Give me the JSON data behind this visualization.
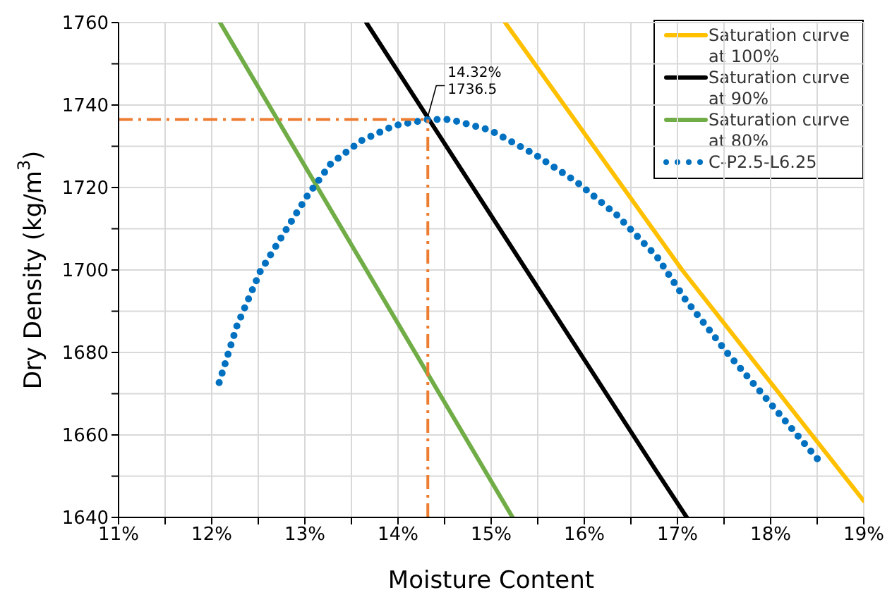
{
  "chart_data": {
    "type": "line",
    "xlabel": "Moisture Content",
    "ylabel": "Dry Density (kg/m$^{3}$)",
    "xlim": [
      11,
      19
    ],
    "ylim": [
      1640,
      1760
    ],
    "xticks": [
      {
        "value": 11,
        "label": "11%"
      },
      {
        "value": 11.5,
        "label": null
      },
      {
        "value": 12,
        "label": "12%"
      },
      {
        "value": 12.5,
        "label": null
      },
      {
        "value": 13,
        "label": "13%"
      },
      {
        "value": 13.5,
        "label": null
      },
      {
        "value": 14,
        "label": "14%"
      },
      {
        "value": 14.5,
        "label": null
      },
      {
        "value": 15,
        "label": "15%"
      },
      {
        "value": 15.5,
        "label": null
      },
      {
        "value": 16,
        "label": "16%"
      },
      {
        "value": 16.5,
        "label": null
      },
      {
        "value": 17,
        "label": "17%"
      },
      {
        "value": 17.5,
        "label": null
      },
      {
        "value": 18,
        "label": "18%"
      },
      {
        "value": 18.5,
        "label": null
      },
      {
        "value": 19,
        "label": "19%"
      }
    ],
    "yticks": [
      1640,
      {
        "value": 1650,
        "label": null
      },
      1660,
      {
        "value": 1670,
        "label": null
      },
      1680,
      {
        "value": 1690,
        "label": null
      },
      1700,
      {
        "value": 1710,
        "label": null
      },
      1720,
      {
        "value": 1730,
        "label": null
      },
      1740,
      {
        "value": 1750,
        "label": null
      },
      1760
    ],
    "grid": true,
    "legend": "top right",
    "marker": "none",
    "series": [
      {
        "name": "Saturation curve at 100%",
        "color": "#ffc000",
        "line_style": "solid",
        "x": [
          15.15,
          17.05,
          19
        ],
        "values": [
          1760,
          1700,
          1644
        ]
      },
      {
        "name": "Saturation curve at 90%",
        "color": "#000000",
        "line_style": "solid",
        "x": [
          13.66,
          16.78,
          17.1
        ],
        "values": [
          1760,
          1651,
          1640
        ]
      },
      {
        "name": "Saturation curve at 80%",
        "color": "#70ad47",
        "line_style": "solid",
        "x": [
          12.09,
          15.23
        ],
        "values": [
          1760,
          1640
        ]
      },
      {
        "name": "C-P2.5-L6.25",
        "color": "#0070c0",
        "line_style": "dotted",
        "x": [
          12.08,
          12.27,
          12.52,
          12.78,
          13.03,
          13.28,
          13.61,
          13.96,
          14.32,
          14.56,
          14.99,
          15.47,
          15.92,
          16.35,
          16.78,
          17.08,
          17.53,
          17.98,
          18.51
        ],
        "values": [
          1672.7,
          1686.4,
          1699.6,
          1709.1,
          1718.1,
          1725.8,
          1731.4,
          1735.0,
          1736.5,
          1736.5,
          1733.9,
          1728.0,
          1721.3,
          1713.3,
          1703.2,
          1693.0,
          1680.0,
          1668.1,
          1654.0
        ]
      }
    ],
    "ref_lines": [
      {
        "axis": "y",
        "value": 1736.5,
        "color": "#ed7d31",
        "line_style": "dashed"
      },
      {
        "axis": "x",
        "value": 14.32,
        "color": "#ed7d31",
        "line_style": "dashed"
      }
    ],
    "annotations": [
      {
        "text": "14.32%\n1736.5",
        "x": 14.32,
        "y": 1736.5
      }
    ]
  }
}
